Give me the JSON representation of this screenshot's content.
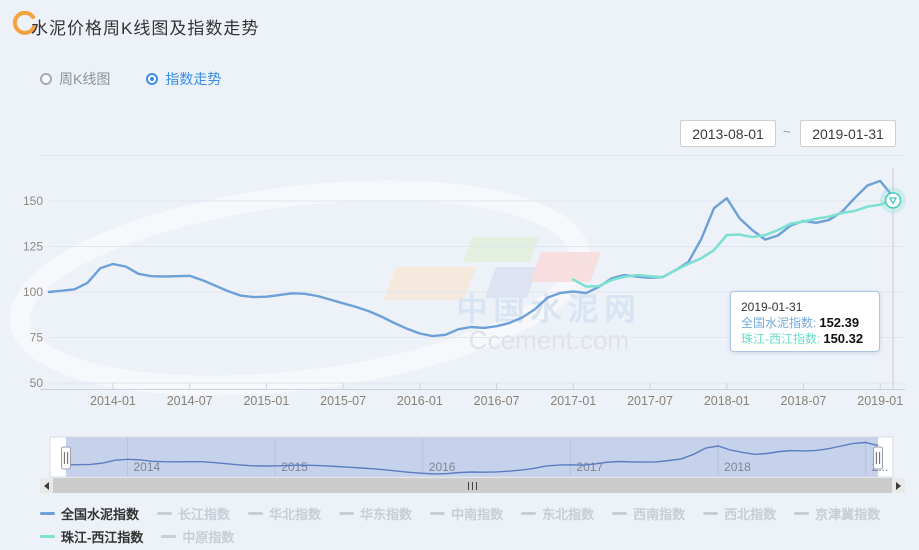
{
  "header": {
    "title": "水泥价格周K线图及指数走势"
  },
  "controls": {
    "radio_options": [
      {
        "label": "周K线图",
        "selected": false
      },
      {
        "label": "指数走势",
        "selected": true
      }
    ],
    "date_start": "2013-08-01",
    "date_separator": "~",
    "date_end": "2019-01-31"
  },
  "tooltip": {
    "date": "2019-01-31",
    "rows": [
      {
        "label": "全国水泥指数:",
        "value": "152.39",
        "color": "#76a9db"
      },
      {
        "label": "珠江-西江指数:",
        "value": "150.32",
        "color": "#6fdccb"
      }
    ]
  },
  "watermark": {
    "cn": "中国水泥网",
    "en": "Ccement.com"
  },
  "legend": {
    "rows": [
      [
        {
          "label": "全国水泥指数",
          "active": true,
          "color": "#6ea0d8"
        },
        {
          "label": "长江指数",
          "active": false
        },
        {
          "label": "华北指数",
          "active": false
        },
        {
          "label": "华东指数",
          "active": false
        },
        {
          "label": "中南指数",
          "active": false
        },
        {
          "label": "东北指数",
          "active": false
        },
        {
          "label": "西南指数",
          "active": false
        },
        {
          "label": "西北指数",
          "active": false
        },
        {
          "label": "京津冀指数",
          "active": false
        }
      ],
      [
        {
          "label": "珠江-西江指数",
          "active": true,
          "color": "#7ee0d2"
        },
        {
          "label": "中原指数",
          "active": false
        }
      ]
    ]
  },
  "chart_data": {
    "type": "line",
    "title": "水泥价格指数走势",
    "x_start": "2013-08",
    "x_end": "2019-01-31",
    "x_ticks": [
      "2014-01",
      "2014-07",
      "2015-01",
      "2015-07",
      "2016-01",
      "2016-07",
      "2017-01",
      "2017-07",
      "2018-01",
      "2018-07",
      "2019-01"
    ],
    "x_tick_month_offsets": [
      5,
      11,
      17,
      23,
      29,
      35,
      41,
      47,
      53,
      59,
      65
    ],
    "y_ticks": [
      50,
      75,
      100,
      125,
      150
    ],
    "ylim": [
      47,
      170
    ],
    "grid": true,
    "legend_position": "bottom",
    "series": [
      {
        "name": "全国水泥指数",
        "color": "#6ea0d8",
        "start_month_offset": 0,
        "values": [
          100,
          100.7,
          101.5,
          105,
          113,
          115.4,
          114,
          110,
          108.7,
          108.5,
          108.7,
          108.9,
          106.5,
          103.5,
          100.5,
          98,
          97.2,
          97.4,
          98.3,
          99.3,
          99,
          97.8,
          95.8,
          93.8,
          91.8,
          89.5,
          86.5,
          83,
          79.8,
          77.2,
          75.8,
          76.5,
          79.5,
          80.8,
          80.3,
          81.2,
          83,
          86,
          90.5,
          97,
          99.5,
          100.3,
          99.4,
          102.8,
          107.5,
          109.3,
          108.4,
          107.8,
          108.2,
          112,
          116.5,
          129,
          146,
          151.5,
          140.5,
          134,
          128.8,
          131,
          136.5,
          139,
          138,
          139.6,
          144,
          151.5,
          158.5,
          161,
          152.39
        ],
        "final_value": 152.39
      },
      {
        "name": "珠江-西江指数",
        "color": "#7ee0d2",
        "start_month_offset": 41,
        "values": [
          106.8,
          103,
          103.2,
          106.6,
          108.4,
          109.3,
          108.6,
          108.2,
          112,
          115.5,
          118.5,
          123,
          131.3,
          131.5,
          130.2,
          131.2,
          134,
          137.5,
          138.6,
          140.3,
          141.4,
          143.4,
          144.5,
          146.9,
          148,
          150.32
        ],
        "final_value": 150.32
      }
    ],
    "navigator": {
      "year_labels": [
        "2014",
        "2015",
        "2016",
        "2017",
        "2018",
        "2..."
      ],
      "year_month_offsets": [
        5,
        17,
        29,
        41,
        53,
        65
      ]
    }
  }
}
